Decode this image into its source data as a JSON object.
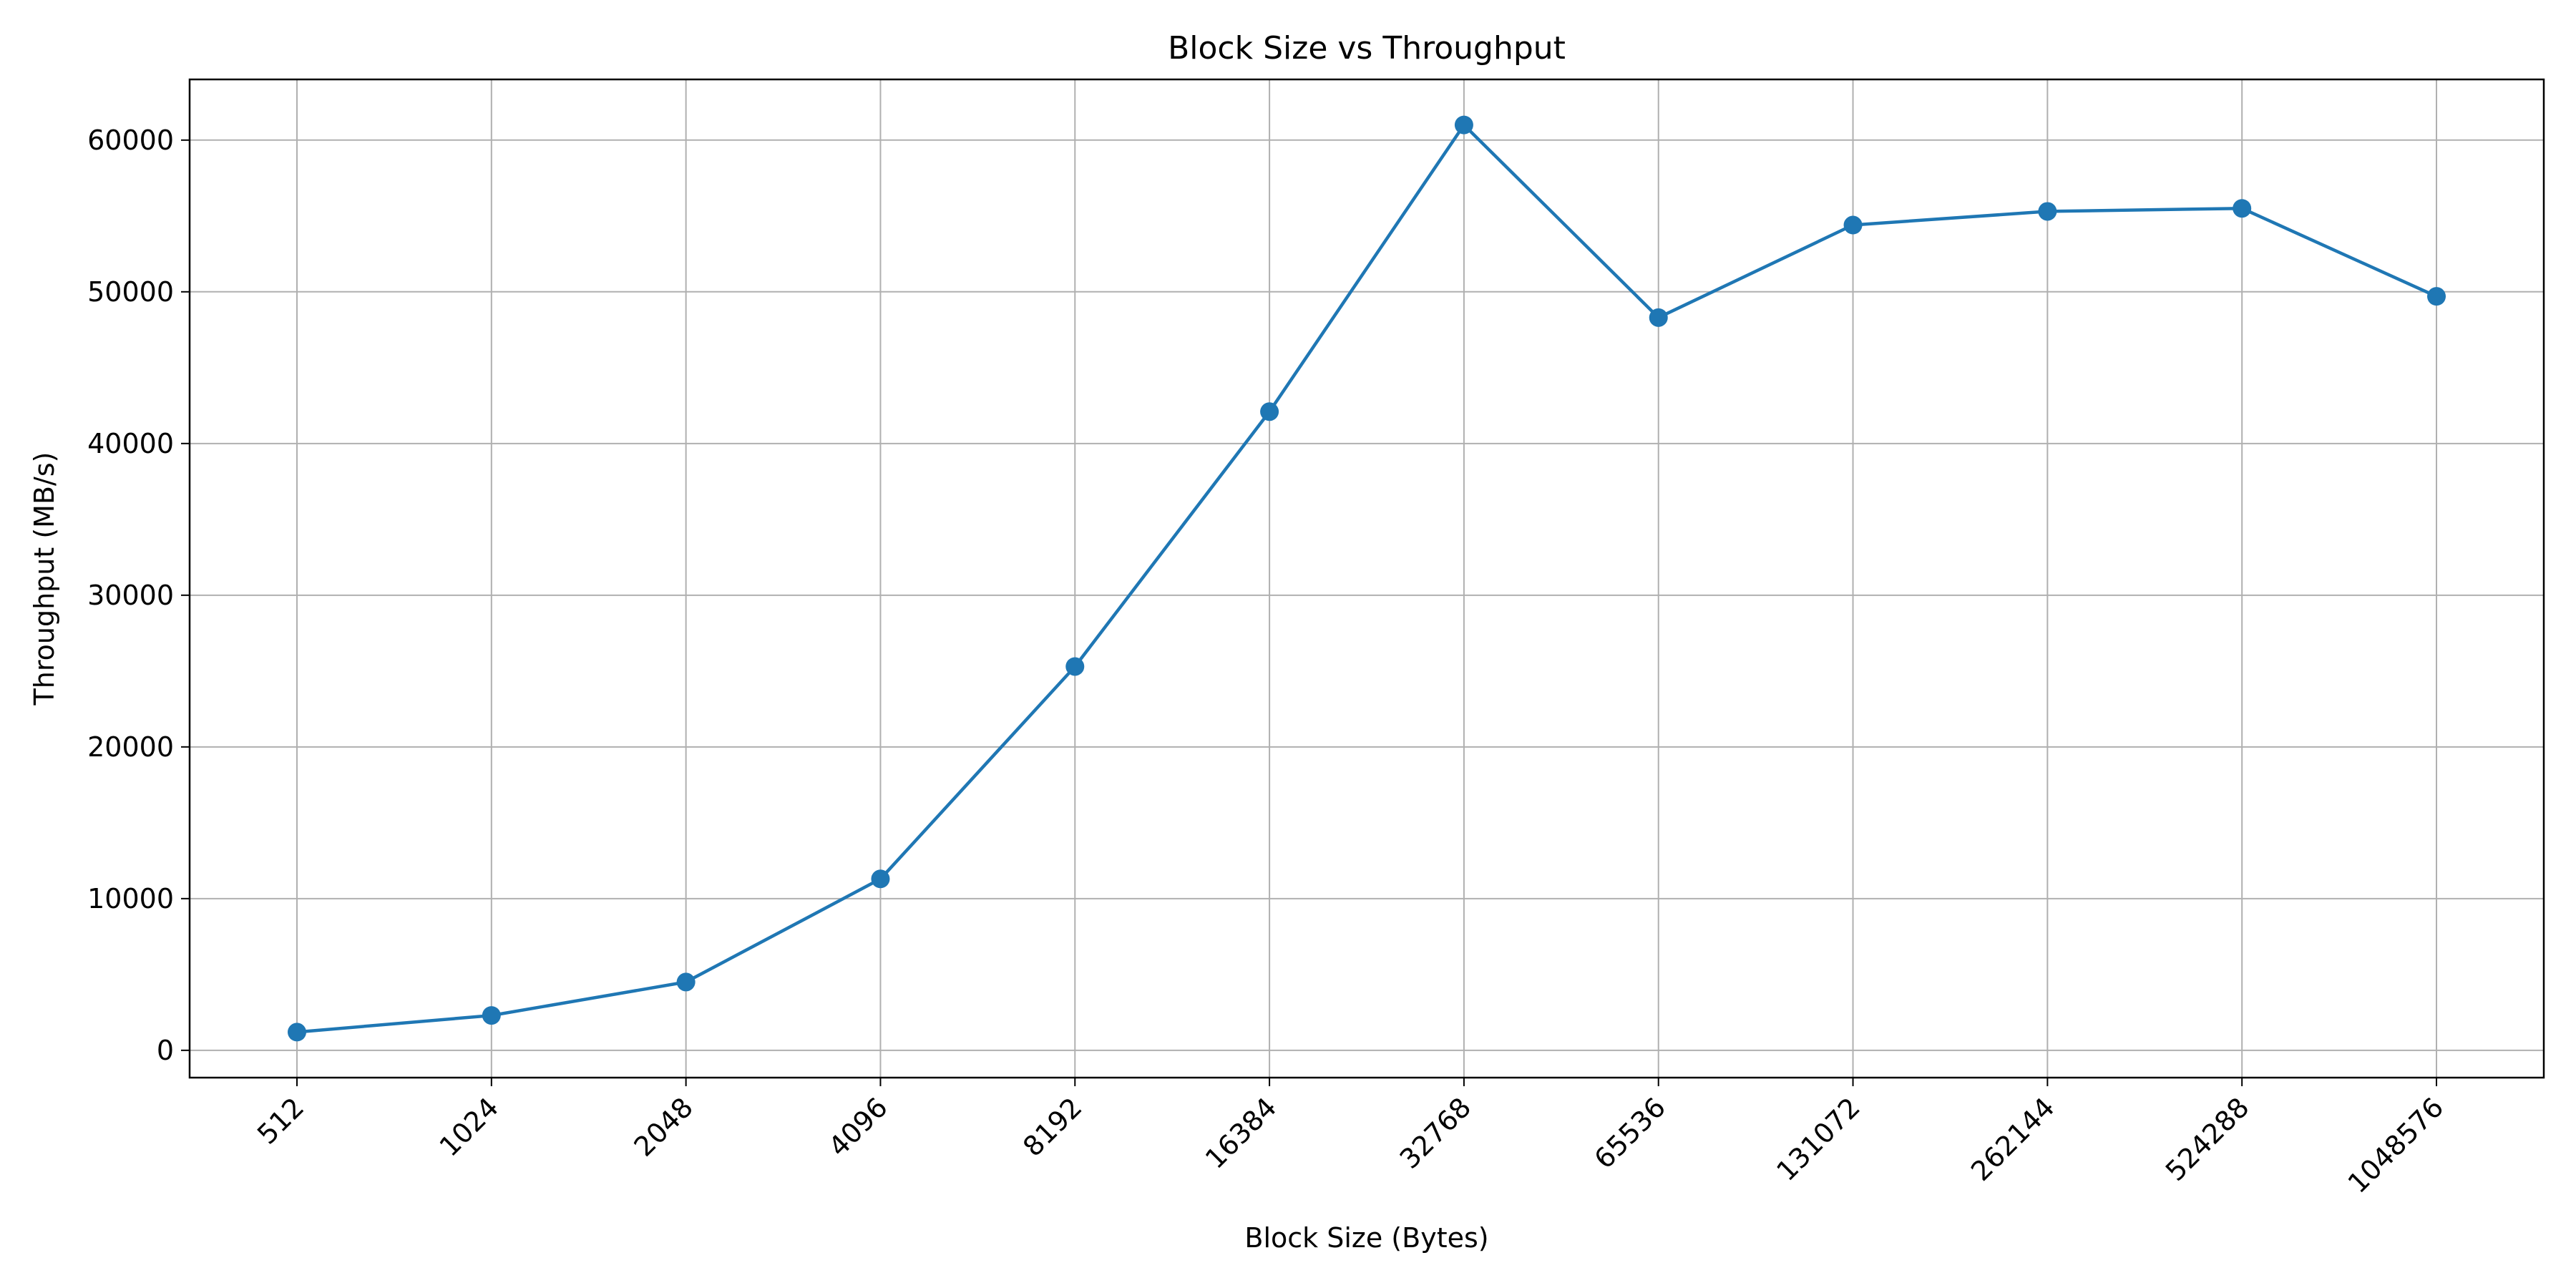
{
  "chart_data": {
    "type": "line",
    "title": "Block Size vs Throughput",
    "xlabel": "Block Size (Bytes)",
    "ylabel": "Throughput (MB/s)",
    "categories": [
      "512",
      "1024",
      "2048",
      "4096",
      "8192",
      "16384",
      "32768",
      "65536",
      "131072",
      "262144",
      "524288",
      "1048576"
    ],
    "series": [
      {
        "values": [
          1200,
          2300,
          4500,
          11300,
          25300,
          42100,
          61000,
          48300,
          54400,
          55300,
          55500,
          49700
        ],
        "color": "#1f77b4",
        "marker": "circle"
      }
    ],
    "ylim": [
      -1800,
      64000
    ],
    "yticks": [
      0,
      10000,
      20000,
      30000,
      40000,
      50000,
      60000
    ],
    "ytick_labels": [
      "0",
      "10000",
      "20000",
      "30000",
      "40000",
      "50000",
      "60000"
    ],
    "grid": true,
    "x_tick_rotation": 45
  }
}
